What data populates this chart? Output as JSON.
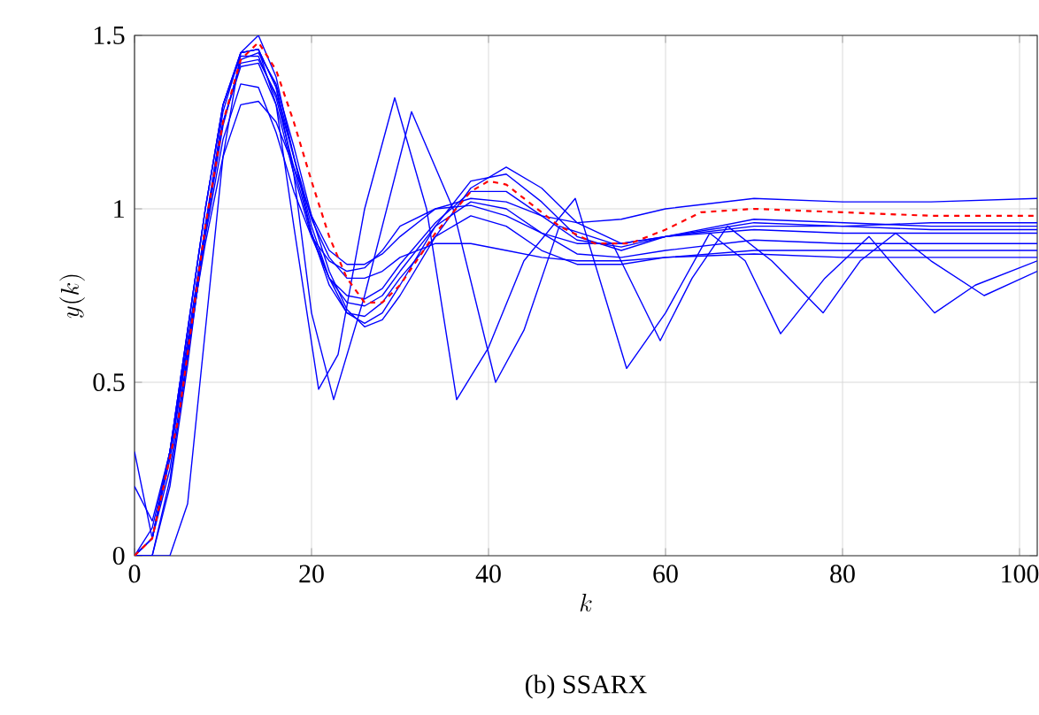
{
  "chart_data": {
    "type": "line",
    "title": "(b) SSARX",
    "xlabel": "k",
    "ylabel": "y(k)",
    "xlim": [
      0,
      102
    ],
    "ylim": [
      0,
      1.5
    ],
    "xticks": [
      0,
      20,
      40,
      60,
      80,
      100
    ],
    "yticks": [
      0,
      0.5,
      1,
      1.5
    ],
    "grid": true,
    "series": [
      {
        "color": "#0000ff",
        "x": [
          0,
          2,
          4,
          6,
          8,
          10,
          12,
          14,
          16,
          18,
          20,
          22,
          24,
          26,
          28,
          30,
          34,
          38,
          42,
          46,
          50,
          55,
          60,
          70,
          80,
          90,
          102
        ],
        "values": [
          0,
          0.08,
          0.3,
          0.6,
          0.9,
          1.15,
          1.3,
          1.31,
          1.25,
          1.12,
          0.98,
          0.88,
          0.84,
          0.84,
          0.87,
          0.92,
          1.0,
          1.03,
          1.02,
          0.98,
          0.96,
          0.97,
          1.0,
          1.03,
          1.02,
          1.02,
          1.03
        ]
      },
      {
        "color": "#0000ff",
        "x": [
          0,
          2,
          4,
          6,
          8,
          10,
          12,
          14,
          16,
          18,
          20,
          22,
          24,
          26,
          28,
          30,
          34,
          38,
          42,
          46,
          50,
          55,
          60,
          70,
          80,
          90,
          102
        ],
        "values": [
          0.3,
          0.05,
          0.25,
          0.58,
          0.92,
          1.2,
          1.36,
          1.35,
          1.22,
          1.05,
          0.92,
          0.85,
          0.82,
          0.83,
          0.88,
          0.95,
          1.0,
          1.01,
          0.98,
          0.93,
          0.9,
          0.9,
          0.92,
          0.95,
          0.95,
          0.96,
          0.96
        ]
      },
      {
        "color": "#0000ff",
        "x": [
          0,
          2,
          4,
          6,
          8,
          10,
          12,
          14,
          16,
          18,
          20,
          22,
          24,
          26,
          28,
          30,
          34,
          38,
          42,
          46,
          50,
          55,
          60,
          70,
          80,
          90,
          102
        ],
        "values": [
          0,
          0,
          0.2,
          0.55,
          0.95,
          1.28,
          1.45,
          1.46,
          1.35,
          1.15,
          0.95,
          0.8,
          0.7,
          0.67,
          0.7,
          0.78,
          0.95,
          1.08,
          1.1,
          1.02,
          0.92,
          0.88,
          0.92,
          0.97,
          0.96,
          0.95,
          0.95
        ]
      },
      {
        "color": "#0000ff",
        "x": [
          0,
          2,
          4,
          6,
          8,
          10,
          12,
          14,
          16,
          18,
          20,
          22,
          24,
          26,
          28,
          30,
          34,
          38,
          42,
          46,
          50,
          55,
          60,
          70,
          80,
          90,
          102
        ],
        "values": [
          0,
          0.05,
          0.3,
          0.65,
          1.0,
          1.3,
          1.44,
          1.44,
          1.32,
          1.12,
          0.93,
          0.8,
          0.73,
          0.72,
          0.75,
          0.82,
          0.95,
          1.02,
          1.0,
          0.93,
          0.87,
          0.86,
          0.88,
          0.91,
          0.9,
          0.9,
          0.9
        ]
      },
      {
        "color": "#0000ff",
        "x": [
          0,
          2,
          4,
          6,
          8,
          10,
          12,
          14,
          16,
          18,
          20,
          22,
          24,
          26,
          28,
          30,
          34,
          38,
          42,
          46,
          50,
          55,
          60,
          70,
          80,
          90,
          102
        ],
        "values": [
          0,
          0,
          0,
          0.15,
          0.65,
          1.15,
          1.45,
          1.5,
          1.38,
          1.15,
          0.93,
          0.78,
          0.7,
          0.69,
          0.73,
          0.8,
          0.92,
          0.98,
          0.95,
          0.88,
          0.84,
          0.84,
          0.86,
          0.87,
          0.86,
          0.86,
          0.86
        ]
      },
      {
        "color": "#0000ff",
        "x": [
          0,
          2,
          4,
          6,
          8,
          10,
          12,
          14,
          16,
          18,
          20,
          22,
          24,
          26,
          28,
          30,
          34,
          38,
          42,
          46,
          50,
          55,
          60,
          70,
          80,
          90,
          102
        ],
        "values": [
          0.2,
          0.1,
          0.3,
          0.62,
          0.95,
          1.25,
          1.42,
          1.43,
          1.33,
          1.15,
          0.97,
          0.86,
          0.8,
          0.8,
          0.82,
          0.86,
          0.9,
          0.9,
          0.88,
          0.86,
          0.85,
          0.85,
          0.86,
          0.88,
          0.88,
          0.88,
          0.88
        ]
      },
      {
        "color": "#0000ff",
        "x": [
          0,
          2,
          4,
          6,
          8,
          10,
          12,
          14,
          16,
          18,
          20,
          22,
          24,
          26,
          28,
          30,
          34,
          38,
          42,
          46,
          50,
          55,
          60,
          70,
          80,
          90,
          102
        ],
        "values": [
          0,
          0.05,
          0.28,
          0.6,
          0.95,
          1.25,
          1.41,
          1.42,
          1.3,
          1.1,
          0.92,
          0.8,
          0.75,
          0.74,
          0.77,
          0.84,
          0.96,
          1.05,
          1.05,
          0.98,
          0.91,
          0.89,
          0.92,
          0.94,
          0.93,
          0.93,
          0.93
        ]
      },
      {
        "color": "#0000ff",
        "x": [
          0,
          2,
          4,
          6,
          8,
          10,
          12,
          14,
          16,
          18,
          20,
          22,
          24,
          26,
          28,
          30,
          34,
          38,
          42,
          46,
          50,
          55,
          60,
          70,
          80,
          90,
          102
        ],
        "values": [
          0,
          0,
          0.22,
          0.57,
          0.93,
          1.24,
          1.43,
          1.45,
          1.36,
          1.18,
          0.98,
          0.82,
          0.71,
          0.66,
          0.68,
          0.75,
          0.92,
          1.06,
          1.12,
          1.06,
          0.96,
          0.9,
          0.92,
          0.96,
          0.95,
          0.94,
          0.94
        ]
      },
      {
        "color": "#0000ff",
        "x": [
          0,
          2,
          4,
          6,
          8,
          10,
          12,
          14,
          16,
          18,
          20.8,
          23,
          26,
          29.4,
          33,
          36.4,
          40,
          44,
          49.8,
          55.6,
          60,
          65,
          69,
          73,
          78,
          83,
          87,
          90.4,
          95,
          102
        ],
        "values": [
          0,
          0.05,
          0.3,
          0.65,
          1.0,
          1.3,
          1.45,
          1.46,
          1.3,
          0.95,
          0.48,
          0.58,
          1.0,
          1.32,
          1.0,
          0.45,
          0.6,
          0.85,
          1.03,
          0.54,
          0.7,
          0.93,
          0.85,
          0.64,
          0.8,
          0.92,
          0.8,
          0.7,
          0.78,
          0.85
        ]
      },
      {
        "color": "#0000ff",
        "x": [
          0,
          2,
          4,
          6,
          8,
          10,
          12,
          14,
          16,
          18,
          20,
          22.5,
          26,
          31.3,
          36,
          40.8,
          44,
          48,
          54,
          59.4,
          63,
          67,
          72,
          77.8,
          82,
          86,
          90,
          96,
          102
        ],
        "values": [
          0,
          0.05,
          0.3,
          0.65,
          1.0,
          1.3,
          1.45,
          1.46,
          1.35,
          1.1,
          0.7,
          0.45,
          0.75,
          1.28,
          1.0,
          0.5,
          0.65,
          0.95,
          0.9,
          0.62,
          0.8,
          0.95,
          0.85,
          0.7,
          0.85,
          0.93,
          0.85,
          0.75,
          0.82
        ]
      },
      {
        "color": "#ff0000",
        "line_style": "dashed",
        "x": [
          0,
          2,
          5,
          8,
          10,
          12,
          14,
          16,
          18,
          20,
          22,
          24,
          26,
          28,
          30,
          34,
          38,
          40,
          42,
          44,
          48,
          52,
          56,
          60,
          64,
          70,
          80,
          90,
          102
        ],
        "values": [
          0,
          0.05,
          0.4,
          0.95,
          1.25,
          1.43,
          1.48,
          1.4,
          1.25,
          1.08,
          0.92,
          0.8,
          0.73,
          0.73,
          0.78,
          0.93,
          1.05,
          1.08,
          1.07,
          1.03,
          0.95,
          0.9,
          0.9,
          0.94,
          0.99,
          1.0,
          0.99,
          0.98,
          0.98
        ]
      }
    ]
  }
}
